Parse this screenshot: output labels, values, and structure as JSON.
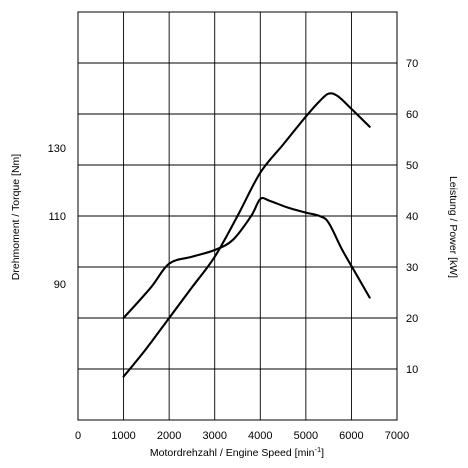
{
  "chart_data": {
    "type": "line",
    "title": "",
    "xlabel": "Motordrehzahl / Engine Speed [min",
    "xlabel_superscript": "-1",
    "xlabel_suffix": "]",
    "ylabel_left": "Drehmoment / Torque [Nm]",
    "ylabel_right": "Leistung / Power [kW]",
    "xlim": [
      0,
      7000
    ],
    "ylim_left": [
      50,
      170
    ],
    "ylim_right": [
      0,
      80
    ],
    "x_ticks": [
      0,
      1000,
      2000,
      3000,
      4000,
      5000,
      6000,
      7000
    ],
    "left_ticks": [
      90,
      110,
      130
    ],
    "right_ticks": [
      10,
      20,
      30,
      40,
      50,
      60,
      70
    ],
    "grid": true,
    "series": [
      {
        "axis": "left",
        "x": [
          1000,
          1600,
          2000,
          2500,
          3000,
          3400,
          3800,
          4000,
          4200,
          4600,
          5000,
          5300,
          5500,
          5800,
          6100,
          6400
        ],
        "values": [
          80,
          89,
          96,
          98,
          100,
          103,
          110,
          115,
          114.5,
          112.5,
          111,
          110,
          108,
          100,
          93,
          86
        ]
      },
      {
        "axis": "right",
        "x": [
          1000,
          1500,
          2000,
          2500,
          3000,
          3500,
          4000,
          4500,
          5000,
          5300,
          5500,
          5700,
          6000,
          6400
        ],
        "values": [
          8.5,
          14,
          20,
          26,
          32,
          40,
          48.5,
          54,
          59.5,
          62.5,
          64,
          63.5,
          61,
          57.5
        ]
      }
    ]
  }
}
